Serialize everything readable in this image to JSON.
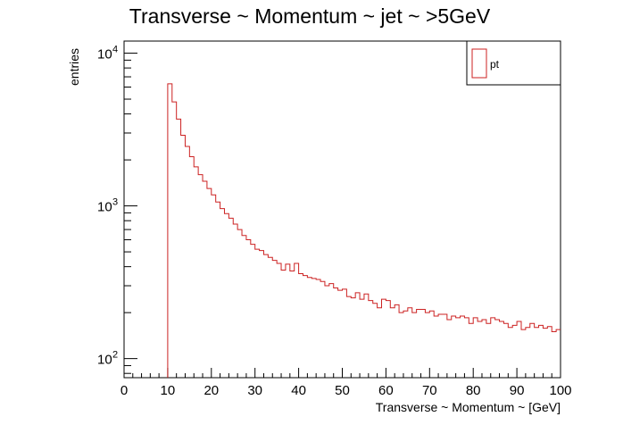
{
  "chart_data": {
    "type": "histogram",
    "title": "Transverse ~ Momentum ~ jet ~ >5GeV",
    "xlabel": "Transverse ~ Momentum ~ [GeV]",
    "ylabel": "entries",
    "xlim": [
      0,
      100
    ],
    "ylim": [
      75,
      12000
    ],
    "yscale": "log",
    "grid": false,
    "legend_position": "top-right",
    "bin_width": 1,
    "x_ticks": [
      "0",
      "10",
      "20",
      "30",
      "40",
      "50",
      "60",
      "70",
      "80",
      "90",
      "100"
    ],
    "y_ticks": [
      {
        "value": 100,
        "mantissa": "10",
        "exponent": "2"
      },
      {
        "value": 1000,
        "mantissa": "10",
        "exponent": "3"
      },
      {
        "value": 10000,
        "mantissa": "10",
        "exponent": "4"
      }
    ],
    "series": [
      {
        "name": "pt",
        "color": "#cc2222",
        "bin_starts": [
          10,
          11,
          12,
          13,
          14,
          15,
          16,
          17,
          18,
          19,
          20,
          21,
          22,
          23,
          24,
          25,
          26,
          27,
          28,
          29,
          30,
          31,
          32,
          33,
          34,
          35,
          36,
          37,
          38,
          39,
          40,
          41,
          42,
          43,
          44,
          45,
          46,
          47,
          48,
          49,
          50,
          51,
          52,
          53,
          54,
          55,
          56,
          57,
          58,
          59,
          60,
          61,
          62,
          63,
          64,
          65,
          66,
          67,
          68,
          69,
          70,
          71,
          72,
          73,
          74,
          75,
          76,
          77,
          78,
          79,
          80,
          81,
          82,
          83,
          84,
          85,
          86,
          87,
          88,
          89,
          90,
          91,
          92,
          93,
          94,
          95,
          96,
          97,
          98,
          99
        ],
        "values": [
          6300,
          4800,
          3700,
          2900,
          2450,
          2100,
          1800,
          1600,
          1450,
          1300,
          1180,
          1060,
          960,
          890,
          830,
          760,
          700,
          640,
          600,
          560,
          520,
          510,
          480,
          460,
          440,
          420,
          380,
          415,
          375,
          420,
          360,
          350,
          340,
          335,
          330,
          320,
          300,
          310,
          290,
          280,
          285,
          255,
          250,
          270,
          245,
          265,
          240,
          230,
          215,
          245,
          240,
          215,
          225,
          200,
          205,
          215,
          200,
          210,
          210,
          200,
          205,
          190,
          195,
          195,
          180,
          190,
          185,
          190,
          185,
          170,
          185,
          175,
          180,
          170,
          185,
          180,
          175,
          170,
          160,
          165,
          175,
          155,
          160,
          170,
          160,
          165,
          158,
          162,
          150,
          155
        ]
      }
    ]
  }
}
